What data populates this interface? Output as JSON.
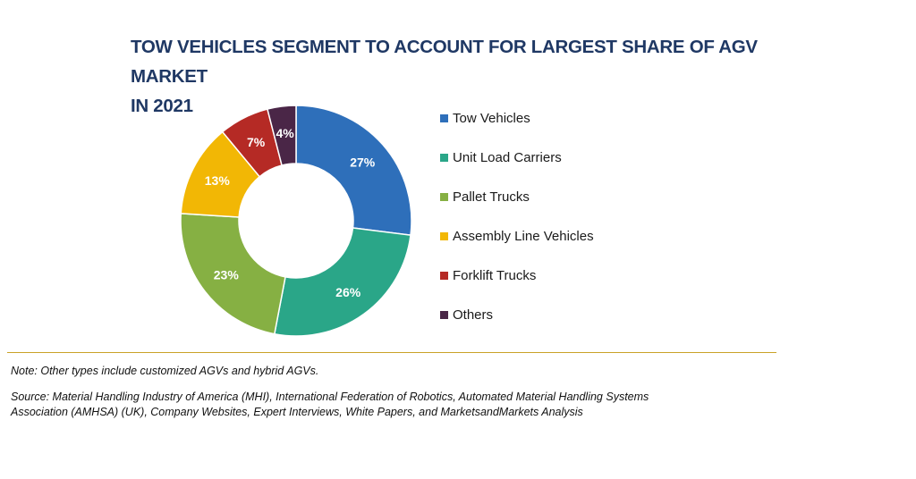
{
  "title_lines": [
    "TOW VEHICLES SEGMENT TO ACCOUNT FOR LARGEST SHARE OF AGV MARKET",
    "IN 2021"
  ],
  "chart_data": {
    "type": "pie",
    "donut": true,
    "title": "TOW VEHICLES SEGMENT TO ACCOUNT FOR LARGEST SHARE OF AGV MARKET IN 2021",
    "categories": [
      "Tow Vehicles",
      "Unit Load Carriers",
      "Pallet Trucks",
      "Assembly Line Vehicles",
      "Forklift Trucks",
      "Others"
    ],
    "values": [
      27,
      26,
      23,
      13,
      7,
      4
    ],
    "labels": [
      "27%",
      "26%",
      "23%",
      "13%",
      "7%",
      "4%"
    ],
    "colors": [
      "#2e6fba",
      "#2aa688",
      "#86b043",
      "#f2b705",
      "#b52a25",
      "#4a2647"
    ],
    "legend_position": "right"
  },
  "legend": [
    {
      "label": "Tow Vehicles",
      "color": "#2e6fba"
    },
    {
      "label": "Unit Load Carriers",
      "color": "#2aa688"
    },
    {
      "label": "Pallet Trucks",
      "color": "#86b043"
    },
    {
      "label": "Assembly Line Vehicles",
      "color": "#f2b705"
    },
    {
      "label": "Forklift Trucks",
      "color": "#b52a25"
    },
    {
      "label": "Others",
      "color": "#4a2647"
    }
  ],
  "note": "Note: Other types include customized AGVs and hybrid AGVs.",
  "source_lines": [
    "Source: Material Handling Industry of America (MHI), International Federation of Robotics, Automated Material Handling Systems",
    "Association (AMHSA) (UK), Company Websites, Expert Interviews, White Papers, and MarketsandMarkets Analysis"
  ]
}
